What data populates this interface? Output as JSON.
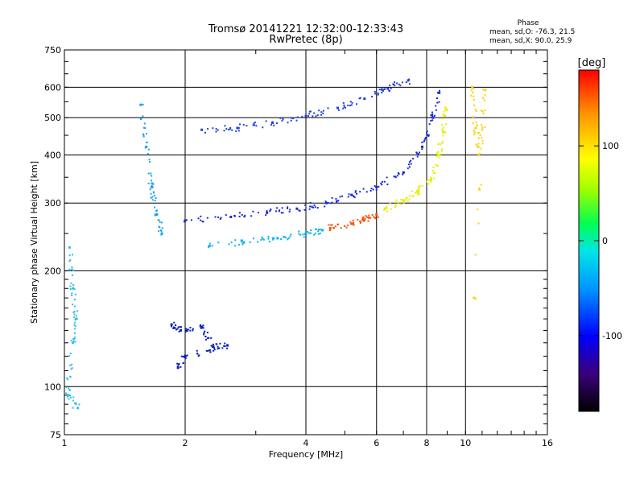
{
  "header": {
    "title_line1": "Tromsø 20141221 12:32:00-12:33:43",
    "title_line2": "RwPretec (8p)",
    "phase_title": "Phase",
    "phase_o": "mean, sd,O: -76.3, 21.5",
    "phase_x": "mean, sd,X:  90.0, 25.9"
  },
  "chart_data": {
    "type": "scatter",
    "xlabel": "Frequency [MHz]",
    "ylabel": "Stationary phase Virtual Height [km]",
    "x_scale": "log",
    "y_scale": "log",
    "xlim": [
      1,
      16
    ],
    "ylim": [
      75,
      750
    ],
    "x_ticks": [
      1,
      2,
      4,
      6,
      8,
      10,
      16
    ],
    "x_tick_labels": [
      "1",
      "2",
      "4",
      "6",
      "8",
      "10",
      "16"
    ],
    "y_ticks": [
      75,
      100,
      200,
      300,
      400,
      500,
      600,
      750
    ],
    "y_tick_labels": [
      "75",
      "100",
      "200",
      "300",
      "400",
      "500",
      "600",
      "750"
    ],
    "grid": true,
    "colorbar": {
      "label": "[deg]",
      "range": [
        -180,
        180
      ],
      "ticks": [
        100,
        0,
        -100
      ],
      "tick_labels": [
        "100",
        "0",
        "-100"
      ],
      "colors": [
        "#000000",
        "#3a007a",
        "#0000ff",
        "#0096ff",
        "#00e6e6",
        "#00ff50",
        "#a0ff00",
        "#ffff00",
        "#ff9600",
        "#ff0000"
      ]
    },
    "series": [
      {
        "values": [
          [
            2.3,
            232
          ],
          [
            2.8,
            237
          ],
          [
            3.4,
            243
          ],
          [
            4.0,
            250
          ],
          [
            4.4,
            255
          ]
        ],
        "color": "#00b4ee"
      },
      {
        "values": [
          [
            4.6,
            258
          ],
          [
            5.2,
            265
          ],
          [
            5.6,
            272
          ],
          [
            6.0,
            280
          ]
        ],
        "color": "#ff5000"
      },
      {
        "values": [
          [
            6.3,
            290
          ],
          [
            7.0,
            305
          ],
          [
            7.6,
            320
          ],
          [
            8.2,
            345
          ],
          [
            8.6,
            400
          ],
          [
            8.8,
            460
          ],
          [
            8.9,
            530
          ]
        ],
        "color": "#e4f000"
      },
      {
        "values": [
          [
            2.0,
            270
          ],
          [
            2.6,
            276
          ],
          [
            3.2,
            283
          ],
          [
            3.8,
            290
          ],
          [
            4.5,
            300
          ],
          [
            5.2,
            315
          ],
          [
            6.0,
            330
          ],
          [
            7.0,
            360
          ],
          [
            7.8,
            420
          ],
          [
            8.3,
            500
          ],
          [
            8.6,
            580
          ]
        ],
        "color": "#1a2ad8"
      },
      {
        "values": [
          [
            2.2,
            465
          ],
          [
            2.7,
            470
          ],
          [
            3.3,
            485
          ],
          [
            4.0,
            505
          ],
          [
            4.8,
            530
          ],
          [
            5.6,
            560
          ],
          [
            6.4,
            595
          ],
          [
            7.2,
            625
          ]
        ],
        "color": "#2040e0"
      },
      {
        "values": [
          [
            1.55,
            540
          ],
          [
            1.6,
            420
          ],
          [
            1.65,
            330
          ],
          [
            1.7,
            280
          ],
          [
            1.75,
            250
          ]
        ],
        "color": "#1ea0f0"
      },
      {
        "values": [
          [
            1.03,
            230
          ],
          [
            1.05,
            180
          ],
          [
            1.07,
            150
          ],
          [
            1.05,
            130
          ],
          [
            1.02,
            95
          ],
          [
            1.08,
            88
          ]
        ],
        "color": "#30c0e8"
      },
      {
        "values": [
          [
            1.85,
            145
          ],
          [
            1.95,
            140
          ],
          [
            2.2,
            143
          ],
          [
            2.35,
            127
          ],
          [
            2.55,
            128
          ],
          [
            2.0,
            120
          ],
          [
            1.92,
            112
          ]
        ],
        "color": "#0a20c0"
      },
      {
        "values": [
          [
            10.4,
            600
          ],
          [
            10.6,
            470
          ],
          [
            10.8,
            400
          ],
          [
            11.2,
            590
          ],
          [
            10.5,
            170
          ]
        ],
        "color": "#ffd000"
      }
    ]
  }
}
